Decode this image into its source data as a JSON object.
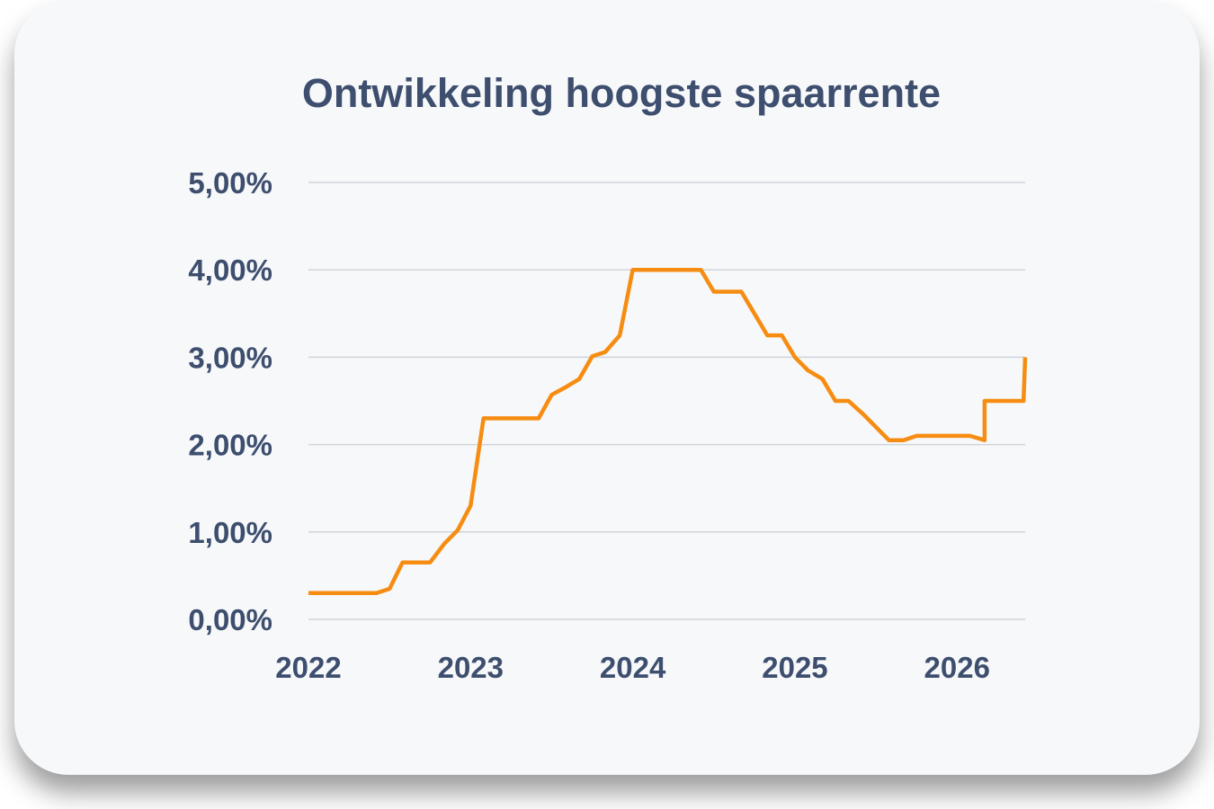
{
  "chart_data": {
    "type": "line",
    "title": "Ontwikkeling hoogste spaarrente",
    "xlabel": "",
    "ylabel": "",
    "xlim": [
      2022.0,
      2026.42
    ],
    "ylim": [
      0,
      5
    ],
    "grid": true,
    "legend": "none",
    "x_ticks": [
      2022,
      2023,
      2024,
      2025,
      2026
    ],
    "x_tick_labels": [
      "2022",
      "2023",
      "2024",
      "2025",
      "2026"
    ],
    "y_ticks": [
      0,
      1,
      2,
      3,
      4,
      5
    ],
    "y_tick_labels": [
      "0,00%",
      "1,00%",
      "2,00%",
      "3,00%",
      "4,00%",
      "5,00%"
    ],
    "series": [
      {
        "color": "#f68d12",
        "points": [
          [
            2022.0,
            0.3
          ],
          [
            2022.42,
            0.3
          ],
          [
            2022.5,
            0.35
          ],
          [
            2022.58,
            0.65
          ],
          [
            2022.75,
            0.65
          ],
          [
            2022.84,
            0.87
          ],
          [
            2022.92,
            1.02
          ],
          [
            2023.0,
            1.3
          ],
          [
            2023.08,
            2.3
          ],
          [
            2023.42,
            2.3
          ],
          [
            2023.5,
            2.57
          ],
          [
            2023.58,
            2.65
          ],
          [
            2023.67,
            2.75
          ],
          [
            2023.75,
            3.01
          ],
          [
            2023.83,
            3.06
          ],
          [
            2023.92,
            3.25
          ],
          [
            2024.0,
            4.0
          ],
          [
            2024.42,
            4.0
          ],
          [
            2024.5,
            3.75
          ],
          [
            2024.67,
            3.75
          ],
          [
            2024.75,
            3.5
          ],
          [
            2024.83,
            3.25
          ],
          [
            2024.92,
            3.25
          ],
          [
            2025.0,
            3.0
          ],
          [
            2025.08,
            2.85
          ],
          [
            2025.17,
            2.75
          ],
          [
            2025.25,
            2.5
          ],
          [
            2025.33,
            2.5
          ],
          [
            2025.42,
            2.35
          ],
          [
            2025.58,
            2.05
          ],
          [
            2025.67,
            2.05
          ],
          [
            2025.75,
            2.1
          ],
          [
            2026.08,
            2.1
          ],
          [
            2026.17,
            2.05
          ],
          [
            2026.17,
            2.5
          ],
          [
            2026.41,
            2.5
          ],
          [
            2026.42,
            3.0
          ]
        ]
      }
    ]
  }
}
